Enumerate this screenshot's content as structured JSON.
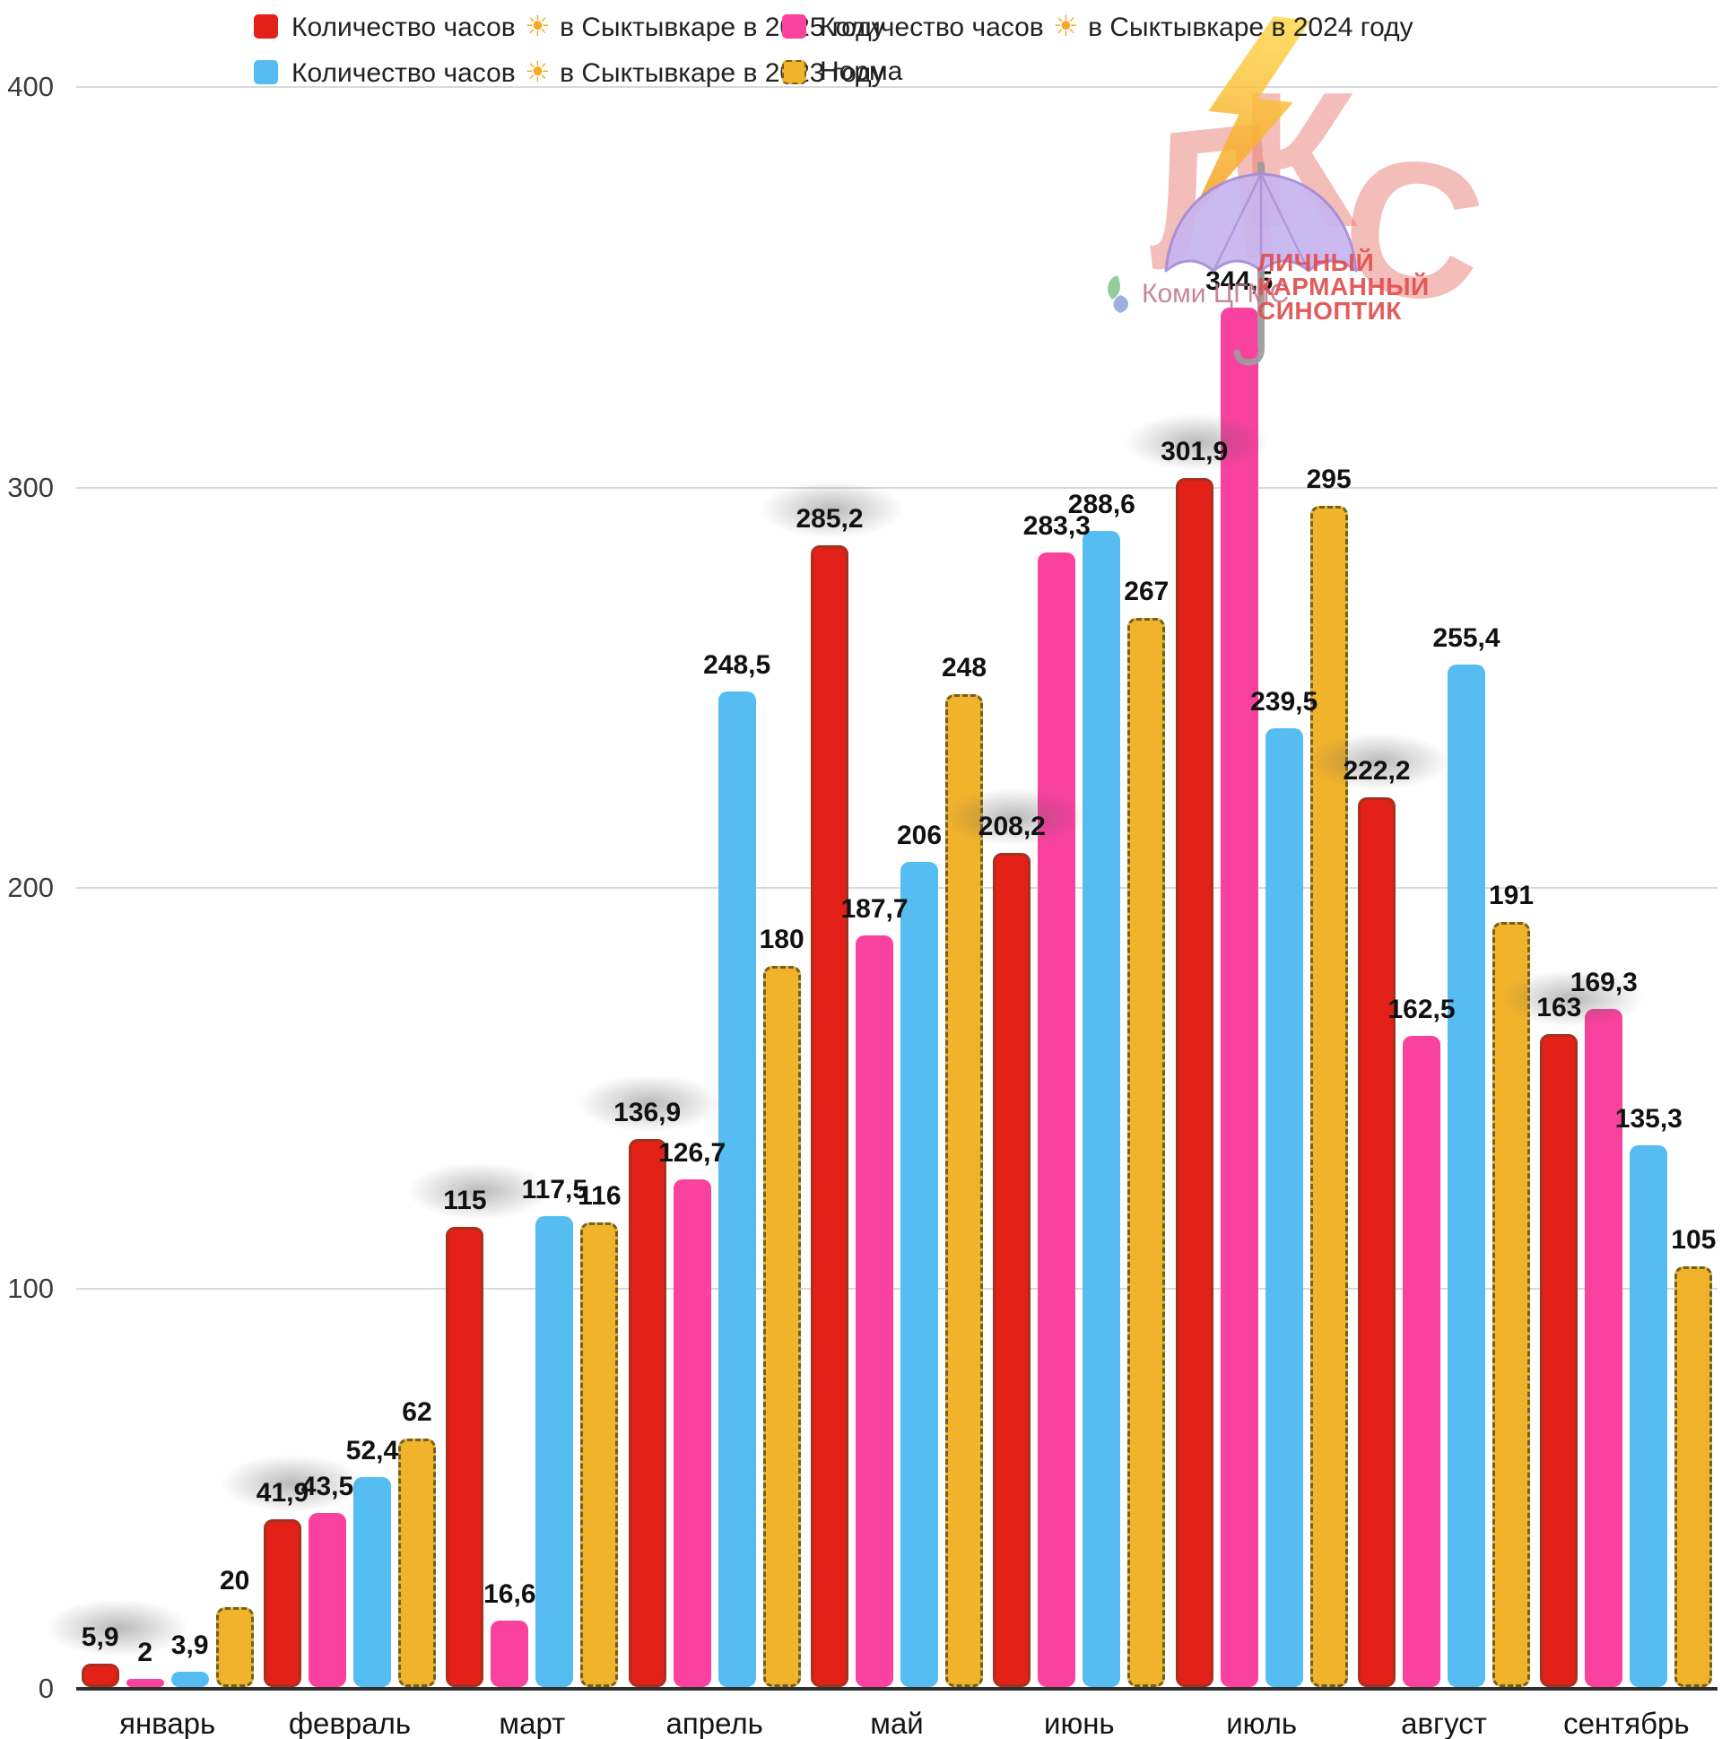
{
  "chart_data": {
    "type": "bar",
    "title": "",
    "categories": [
      "январь",
      "февраль",
      "март",
      "апрель",
      "май",
      "июнь",
      "июль",
      "август",
      "сентябрь"
    ],
    "series": [
      {
        "name": "Количество часов ☀️ в Сыктывкаре в 2025 году",
        "color": "#e32119",
        "border_color": "#a8301f",
        "label_shadow": true,
        "values": [
          5.9,
          41.9,
          115,
          136.9,
          285.2,
          208.2,
          301.9,
          222.2,
          163
        ]
      },
      {
        "name": "Количество часов ☀️ в Сыктывкаре в 2024 году",
        "color": "#f9419f",
        "values": [
          2,
          43.5,
          16.6,
          126.7,
          187.7,
          283.3,
          344.5,
          162.5,
          169.3
        ]
      },
      {
        "name": "Количество часов ☀️ в Сыктывкаре в 2023 году",
        "color": "#55bdf2",
        "values": [
          3.9,
          52.4,
          117.5,
          248.5,
          206,
          288.6,
          239.5,
          255.4,
          135.3
        ]
      },
      {
        "name": "Норма",
        "color": "#f1b32c",
        "dashed_border": "#6d6126",
        "values": [
          20,
          62,
          116,
          180,
          248,
          267,
          295,
          191,
          105
        ]
      }
    ],
    "ylim": [
      0,
      400
    ],
    "yticks": [
      0,
      100,
      200,
      300,
      400
    ],
    "grid": true,
    "legend_position": "top",
    "legend_columns": [
      [
        0,
        2
      ],
      [
        1,
        3
      ]
    ],
    "decimal_separator": ",",
    "colors": {
      "gridline": "#d9d9d9",
      "axis": "#2e2e2e",
      "value_label": "#111111"
    }
  },
  "logo": {
    "letters": [
      "Л",
      "К",
      "С"
    ],
    "org": "Коми ЦГМС",
    "caption": [
      "ЛИЧНЫЙ",
      "КАРМАННЫЙ",
      "СИНОПТИК"
    ]
  }
}
